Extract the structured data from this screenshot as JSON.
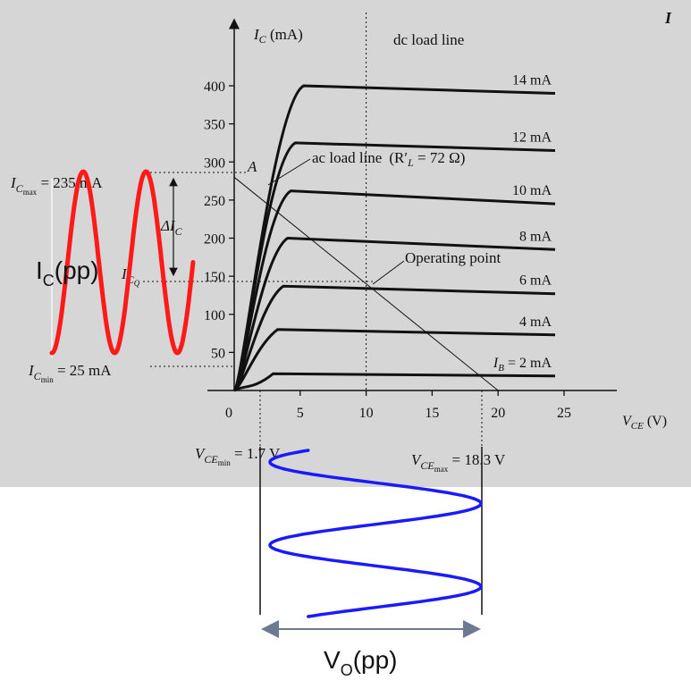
{
  "colors": {
    "panel": "#d6d6d6",
    "curve": "#111111",
    "input_wave": "#ff1a1a",
    "output_wave": "#1a1aff",
    "arrow": "#6b7a90"
  },
  "labels": {
    "y_axis_symbol": "I",
    "y_axis_sub": "C",
    "y_axis_unit": " (mA)",
    "x_axis_symbol": "V",
    "x_axis_sub": "CE",
    "x_axis_unit": " (V)",
    "origin": "0",
    "dc_load_line": "dc load line",
    "ac_load_line": "ac load line",
    "ac_load_line_value": "(R′",
    "ac_load_line_sub": "L",
    "ac_load_line_tail": " = 72 Ω)",
    "point_a": "A",
    "operating_point": "Operating point",
    "ic_max_sym": "I",
    "ic_max_sub": "C",
    "ic_max_subsub": "max",
    "ic_max_value": " = 235 mA",
    "ic_min_sym": "I",
    "ic_min_sub": "C",
    "ic_min_subsub": "min",
    "ic_min_value": " = 25 mA",
    "icq_sym": "I",
    "icq_sub": "C",
    "icq_subsub": "Q",
    "delta_ic": "ΔI",
    "delta_ic_sub": "C",
    "vce_min_sym": "V",
    "vce_min_sub": "CE",
    "vce_min_subsub": "min",
    "vce_min_value": " = 1.7 V",
    "vce_max_sym": "V",
    "vce_max_sub": "CE",
    "vce_max_subsub": "max",
    "vce_max_value": " = 18.3 V",
    "ic_pp": "I",
    "ic_pp_sub": "C",
    "ic_pp_tail": "(pp)",
    "vo_pp": "V",
    "vo_pp_sub": "O",
    "vo_pp_tail": "(pp)",
    "corner_mark": "I"
  },
  "chart_data": {
    "type": "line",
    "xlabel": "V_CE (V)",
    "ylabel": "I_C (mA)",
    "xlim": [
      0,
      25
    ],
    "ylim": [
      0,
      400
    ],
    "x_ticks": [
      0,
      5,
      10,
      15,
      20,
      25
    ],
    "y_ticks": [
      50,
      100,
      150,
      200,
      250,
      300,
      350,
      400
    ],
    "series": [
      {
        "name": "I_B = 2 mA",
        "saturation_vce": 2.0,
        "values": [
          [
            2.0,
            22
          ],
          [
            25,
            19
          ]
        ]
      },
      {
        "name": "4 mA",
        "saturation_vce": 2.2,
        "values": [
          [
            2.2,
            80
          ],
          [
            25,
            73
          ]
        ]
      },
      {
        "name": "6 mA",
        "saturation_vce": 2.5,
        "values": [
          [
            2.5,
            137
          ],
          [
            25,
            127
          ]
        ]
      },
      {
        "name": "8 mA",
        "saturation_vce": 2.7,
        "values": [
          [
            2.7,
            200
          ],
          [
            25,
            185
          ]
        ]
      },
      {
        "name": "10 mA",
        "saturation_vce": 2.8,
        "values": [
          [
            2.8,
            262
          ],
          [
            25,
            245
          ]
        ]
      },
      {
        "name": "12 mA",
        "saturation_vce": 3.0,
        "values": [
          [
            3.0,
            325
          ],
          [
            25,
            315
          ]
        ]
      },
      {
        "name": "14 mA",
        "saturation_vce": 3.5,
        "values": [
          [
            3.5,
            400
          ],
          [
            25,
            390
          ]
        ]
      }
    ],
    "dc_load_line_vce": 10,
    "ac_load_line": {
      "from": [
        0,
        280
      ],
      "to": [
        20,
        0
      ]
    },
    "operating_point": {
      "vce": 10,
      "ic": 137
    },
    "point_a": {
      "vce": 1.7,
      "ic": 258
    },
    "ic_max": 235,
    "ic_min": 25,
    "vce_min": 1.7,
    "vce_max": 18.3
  }
}
